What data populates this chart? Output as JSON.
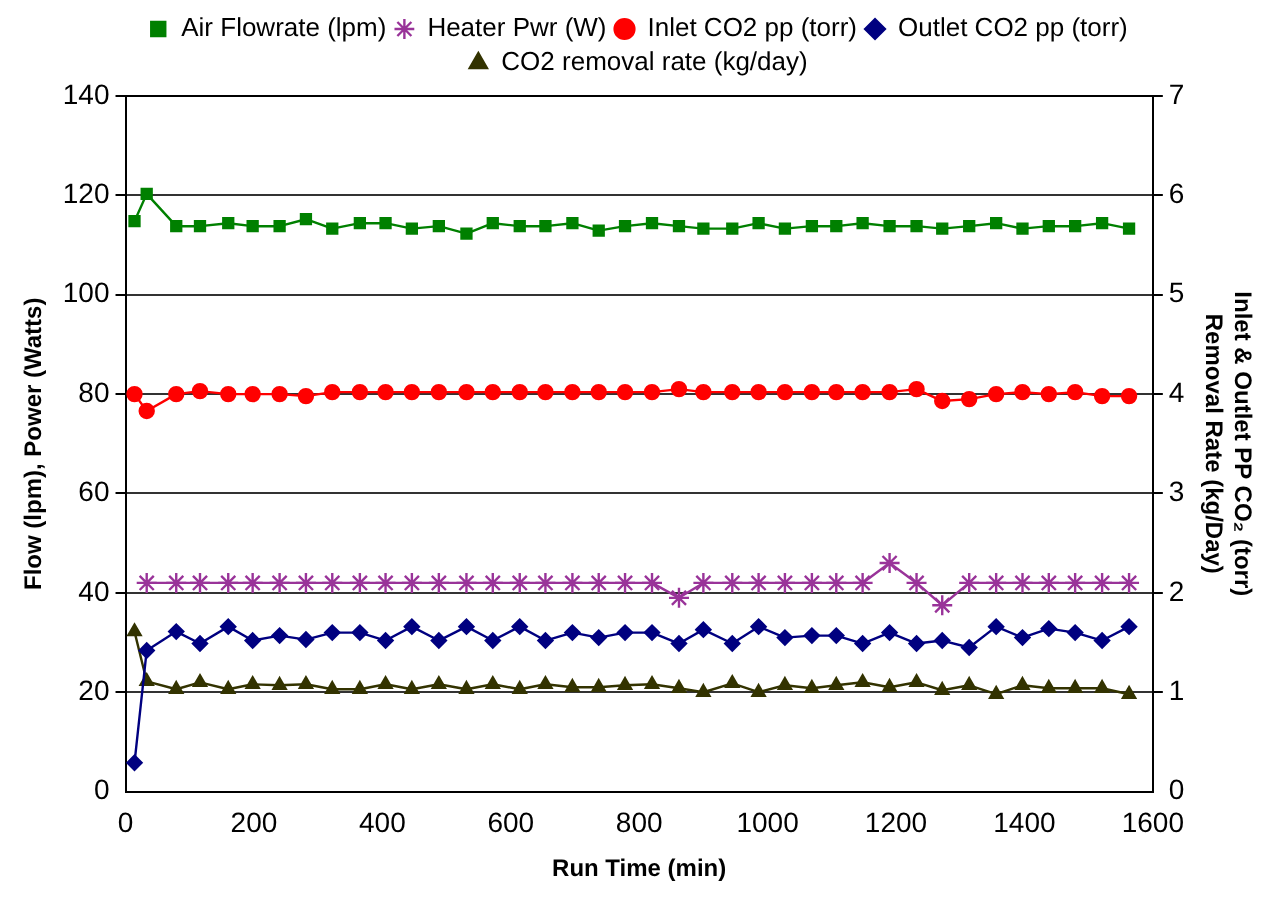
{
  "chart_data": {
    "type": "line",
    "x": [
      14,
      33,
      79,
      116,
      160,
      198,
      240,
      281,
      322,
      365,
      405,
      446,
      488,
      531,
      572,
      614,
      654,
      696,
      737,
      778,
      820,
      862,
      900,
      945,
      986,
      1027,
      1069,
      1107,
      1148,
      1190,
      1232,
      1272,
      1314,
      1356,
      1397,
      1438,
      1479,
      1521,
      1563
    ],
    "xlabel": "Run Time (min)",
    "ylabel": "Flow (lpm), Power (Watts)",
    "y2label": "Inlet & Outlet PP CO₂ (torr)\nRemoval Rate (kg/Day)",
    "xlim": [
      0,
      1600
    ],
    "xticks": [
      0,
      200,
      400,
      600,
      800,
      1000,
      1200,
      1400,
      1600
    ],
    "ylim": [
      0,
      140
    ],
    "yticks": [
      0,
      20,
      40,
      60,
      80,
      100,
      120,
      140
    ],
    "y2lim": [
      0,
      7
    ],
    "y2ticks": [
      0,
      1,
      2,
      3,
      4,
      5,
      6,
      7
    ],
    "grid": "y",
    "legend": "top",
    "line_style": "solid",
    "series": [
      {
        "name": "Air Flowrate (lpm)",
        "color": "#008000",
        "marker": "square",
        "values": [
          114.8,
          120.3,
          113.8,
          113.8,
          114.4,
          113.8,
          113.8,
          115.2,
          113.3,
          114.4,
          114.4,
          113.3,
          113.8,
          112.3,
          114.4,
          113.8,
          113.8,
          114.4,
          112.9,
          113.8,
          114.4,
          113.8,
          113.3,
          113.3,
          114.4,
          113.3,
          113.8,
          113.8,
          114.4,
          113.8,
          113.8,
          113.3,
          113.8,
          114.4,
          113.3,
          113.8,
          113.8,
          114.4,
          113.3
        ]
      },
      {
        "name": "Heater Pwr (W)",
        "color": "#993399",
        "marker": "cross",
        "values": [
          null,
          42,
          42,
          42,
          42,
          42,
          42,
          42,
          42,
          42,
          42,
          42,
          42,
          42,
          42,
          42,
          42,
          42,
          42,
          42,
          42,
          39,
          42,
          42,
          42,
          42,
          42,
          42,
          42,
          46,
          42,
          37.5,
          42,
          42,
          42,
          42,
          42,
          42,
          42
        ]
      },
      {
        "name": "Inlet CO2 pp (torr)",
        "color": "#ff0000",
        "marker": "circle",
        "axis": "y2",
        "values": [
          4.0,
          3.83,
          4.0,
          4.03,
          4.0,
          4.0,
          4.0,
          3.98,
          4.02,
          4.02,
          4.02,
          4.02,
          4.02,
          4.02,
          4.02,
          4.02,
          4.02,
          4.02,
          4.02,
          4.02,
          4.02,
          4.05,
          4.02,
          4.02,
          4.02,
          4.02,
          4.02,
          4.02,
          4.02,
          4.02,
          4.05,
          3.93,
          3.95,
          4.0,
          4.02,
          4.0,
          4.02,
          3.98,
          3.98
        ]
      },
      {
        "name": "Outlet CO2 pp (torr)",
        "color": "#000080",
        "marker": "diamond",
        "axis": "y2",
        "values": [
          0.29,
          1.42,
          1.61,
          1.49,
          1.66,
          1.52,
          1.57,
          1.53,
          1.6,
          1.6,
          1.52,
          1.66,
          1.52,
          1.66,
          1.52,
          1.66,
          1.52,
          1.6,
          1.55,
          1.6,
          1.6,
          1.49,
          1.63,
          1.49,
          1.66,
          1.55,
          1.57,
          1.57,
          1.49,
          1.6,
          1.49,
          1.52,
          1.45,
          1.66,
          1.55,
          1.64,
          1.6,
          1.52,
          1.66
        ]
      },
      {
        "name": "CO2 removal rate (kg/day)",
        "color": "#333300",
        "marker": "triangle",
        "axis": "y2",
        "values": [
          1.61,
          1.11,
          1.03,
          1.1,
          1.03,
          1.08,
          1.07,
          1.08,
          1.03,
          1.03,
          1.08,
          1.03,
          1.08,
          1.03,
          1.08,
          1.03,
          1.08,
          1.05,
          1.05,
          1.07,
          1.08,
          1.04,
          1.0,
          1.09,
          1.0,
          1.07,
          1.04,
          1.07,
          1.1,
          1.05,
          1.1,
          1.02,
          1.07,
          0.98,
          1.07,
          1.04,
          1.04,
          1.04,
          0.98
        ]
      }
    ]
  }
}
